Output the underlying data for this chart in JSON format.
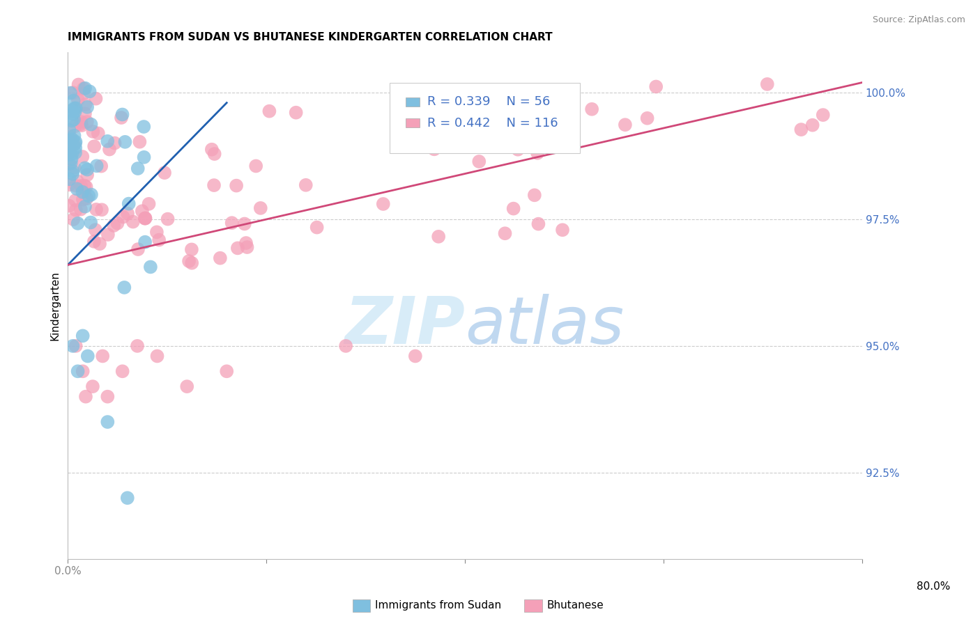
{
  "title": "IMMIGRANTS FROM SUDAN VS BHUTANESE KINDERGARTEN CORRELATION CHART",
  "source": "Source: ZipAtlas.com",
  "ylabel": "Kindergarten",
  "ylabel_right_labels": [
    "100.0%",
    "97.5%",
    "95.0%",
    "92.5%"
  ],
  "ylabel_right_values": [
    1.0,
    0.975,
    0.95,
    0.925
  ],
  "x_min": 0.0,
  "x_max": 0.8,
  "y_min": 0.908,
  "y_max": 1.008,
  "legend_r_blue": "0.339",
  "legend_n_blue": "56",
  "legend_r_pink": "0.442",
  "legend_n_pink": "116",
  "blue_color": "#7fbfdf",
  "pink_color": "#f4a0b8",
  "trendline_blue": "#2060b0",
  "trendline_pink": "#d04878",
  "watermark_zip": "ZIP",
  "watermark_atlas": "atlas"
}
